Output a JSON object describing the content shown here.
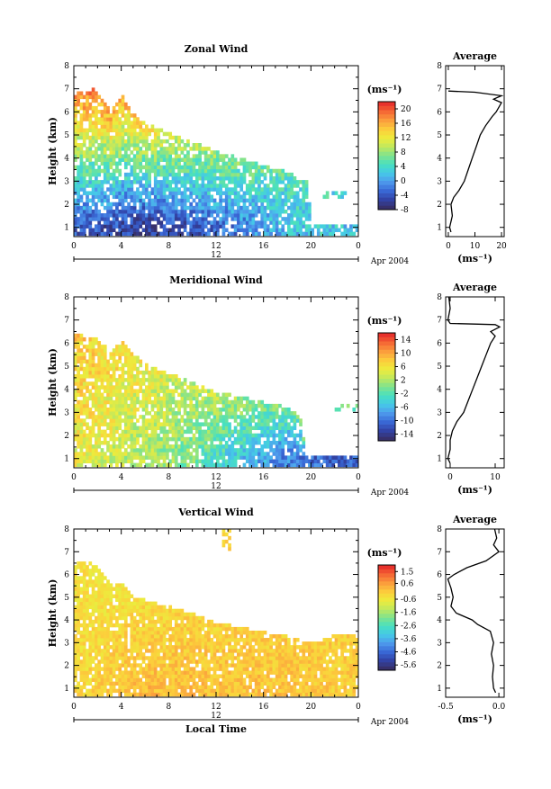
{
  "chart_data": [
    {
      "type": "heatmap",
      "title": "Zonal Wind",
      "ylabel": "Height (km)",
      "xlabel": "",
      "ylim": [
        0.6,
        8
      ],
      "xlim": [
        0,
        24
      ],
      "yticks": [
        "1",
        "2",
        "3",
        "4",
        "5",
        "6",
        "7",
        "8"
      ],
      "xticks": [
        "0",
        "4",
        "8",
        "12",
        "16",
        "20",
        "0"
      ],
      "date_bar_label": "12",
      "date_label": "Apr 2004",
      "colorbar": {
        "unit": "(ms⁻¹)",
        "range": [
          -8,
          22
        ],
        "ticks": [
          "20",
          "16",
          "12",
          "8",
          "4",
          "0",
          "-4",
          "-8"
        ]
      },
      "profile": {
        "title": "Average",
        "xlim": [
          -1,
          21
        ],
        "xticks": [
          "0",
          "10",
          "20"
        ],
        "xlabel": "(ms⁻¹)",
        "y": [
          0.8,
          1.0,
          1.5,
          2.0,
          2.3,
          2.6,
          3.0,
          3.5,
          4.0,
          4.5,
          5.0,
          5.4,
          5.8,
          6.0,
          6.2,
          6.4,
          6.55,
          6.7,
          6.85,
          6.9
        ],
        "x": [
          1,
          0.5,
          1.5,
          1,
          2,
          4,
          6,
          7.5,
          9,
          10.5,
          12,
          14,
          16.5,
          18,
          19,
          20,
          17,
          20,
          10,
          0
        ]
      },
      "series": [
        {
          "name": "upper",
          "values": [
            18,
            19,
            18,
            17,
            17,
            16,
            15,
            14,
            13,
            12,
            11,
            10,
            9.5,
            9,
            8.5,
            8,
            7.5,
            7,
            6.5,
            6,
            5.5,
            5,
            4.5,
            4,
            3.5,
            3.5,
            3,
            3,
            2.5
          ]
        },
        {
          "name": "lower",
          "values": [
            -4,
            -4,
            -4.5,
            -5,
            -5,
            -5.5,
            -6,
            -6,
            -6,
            -5.5,
            -5,
            -4.5,
            -4,
            -3.5,
            -3,
            -2.5,
            -2,
            -1.5,
            -1,
            0,
            1,
            1.5,
            2,
            2.5,
            3,
            2.5,
            2,
            1.5,
            1
          ]
        }
      ]
    },
    {
      "type": "heatmap",
      "title": "Meridional Wind",
      "ylabel": "Height (km)",
      "xlabel": "",
      "ylim": [
        0.6,
        8
      ],
      "xlim": [
        0,
        24
      ],
      "yticks": [
        "1",
        "2",
        "3",
        "4",
        "5",
        "6",
        "7",
        "8"
      ],
      "xticks": [
        "0",
        "4",
        "8",
        "12",
        "16",
        "20",
        "0"
      ],
      "date_bar_label": "12",
      "date_label": "Apr 2004",
      "colorbar": {
        "unit": "(ms⁻¹)",
        "range": [
          -16,
          16
        ],
        "ticks": [
          "14",
          "10",
          "6",
          "2",
          "-2",
          "-6",
          "-10",
          "-14"
        ]
      },
      "profile": {
        "title": "Average",
        "xlim": [
          -1,
          12
        ],
        "xticks": [
          "0",
          "10"
        ],
        "xlabel": "(ms⁻¹)",
        "y": [
          0.8,
          1.0,
          1.4,
          1.8,
          2.2,
          2.6,
          3.0,
          3.5,
          4.0,
          4.5,
          5.0,
          5.5,
          6.0,
          6.3,
          6.5,
          6.7,
          6.8,
          6.85,
          7.0,
          7.5,
          8.0
        ],
        "x": [
          0,
          -0.5,
          0,
          0,
          0.5,
          1.5,
          3,
          4,
          5,
          6,
          7,
          8,
          9,
          10,
          9,
          11,
          10,
          0,
          -0.5,
          0,
          -0.3
        ]
      },
      "series": [
        {
          "name": "upper",
          "values": [
            8,
            8,
            7.5,
            7,
            7,
            6.5,
            6,
            5.5,
            5,
            4.5,
            4,
            3.5,
            3,
            3,
            2.5,
            2,
            1.5,
            1,
            0.5,
            0,
            0,
            -0.5,
            -0.5,
            -1,
            -1,
            -1,
            -1.5,
            -1.5,
            -1.5
          ]
        },
        {
          "name": "lower",
          "values": [
            5,
            5,
            4.5,
            4,
            3.5,
            3,
            2.5,
            2,
            1.5,
            1,
            0.5,
            0,
            -1,
            -2,
            -3,
            -4,
            -5,
            -6,
            -7,
            -8,
            -9,
            -9.5,
            -10,
            -10.5,
            -11,
            -11,
            -11,
            -11,
            -11
          ]
        }
      ]
    },
    {
      "type": "heatmap",
      "title": "Vertical Wind",
      "ylabel": "Height (km)",
      "xlabel": "Local Time",
      "ylim": [
        0.6,
        8
      ],
      "xlim": [
        0,
        24
      ],
      "yticks": [
        "1",
        "2",
        "3",
        "4",
        "5",
        "6",
        "7",
        "8"
      ],
      "xticks": [
        "0",
        "4",
        "8",
        "12",
        "16",
        "20",
        "0"
      ],
      "date_bar_label": "12",
      "date_label": "Apr 2004",
      "colorbar": {
        "unit": "(ms⁻¹)",
        "range": [
          -6,
          2
        ],
        "ticks": [
          "1.5",
          "0.6",
          "-0.6",
          "-1.6",
          "-2.6",
          "-3.6",
          "-4.6",
          "-5.6"
        ]
      },
      "profile": {
        "title": "Average",
        "xlim": [
          -0.5,
          0.05
        ],
        "xticks": [
          "-0.5",
          "0.0"
        ],
        "xlabel": "(ms⁻¹)",
        "y": [
          0.8,
          1.0,
          1.5,
          2.0,
          2.5,
          3.0,
          3.5,
          3.8,
          4.0,
          4.3,
          4.6,
          5.0,
          5.4,
          5.8,
          6.0,
          6.3,
          6.6,
          7.0,
          7.3,
          7.6,
          8.0
        ],
        "x": [
          -0.03,
          -0.05,
          -0.06,
          -0.05,
          -0.07,
          -0.05,
          -0.08,
          -0.2,
          -0.25,
          -0.4,
          -0.45,
          -0.43,
          -0.45,
          -0.48,
          -0.42,
          -0.3,
          -0.12,
          0.0,
          -0.05,
          -0.02,
          -0.04
        ]
      },
      "series": [
        {
          "name": "upper",
          "values": [
            -0.4,
            -0.4,
            -0.5,
            -0.5,
            -0.4,
            -0.4,
            -0.3,
            -0.3,
            -0.3,
            -0.2,
            -0.2,
            -0.2,
            -0.1,
            -0.1,
            -0.1,
            -0.1,
            0,
            0,
            0,
            0,
            0,
            0,
            0,
            0,
            0,
            0,
            0,
            0,
            0
          ]
        },
        {
          "name": "lower",
          "values": [
            -0.2,
            -0.2,
            -0.1,
            0,
            0.1,
            0.2,
            0.2,
            0.3,
            0.3,
            0.2,
            0.2,
            0.3,
            0.3,
            0.2,
            0.2,
            0.2,
            0.1,
            0.2,
            0.2,
            0.1,
            0.1,
            0.2,
            0.1,
            0.1,
            0.1,
            0,
            0,
            0,
            0
          ]
        }
      ]
    }
  ]
}
